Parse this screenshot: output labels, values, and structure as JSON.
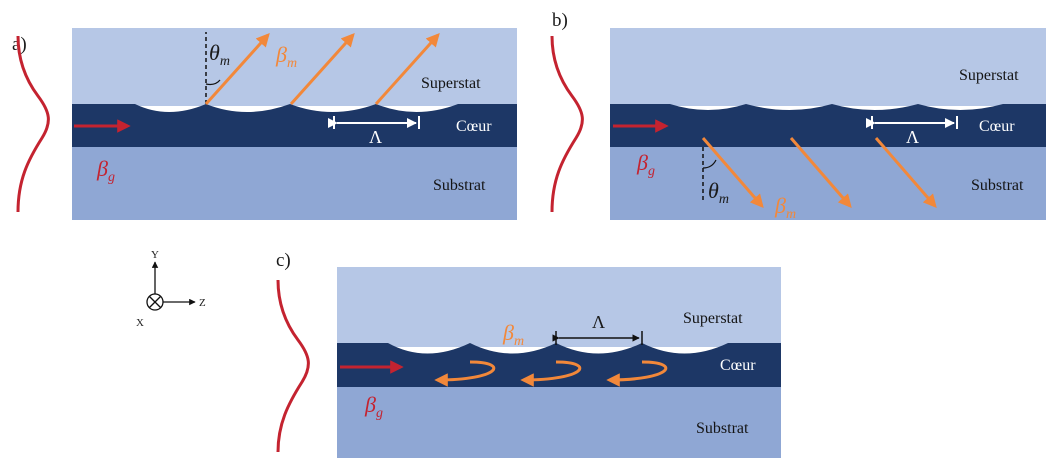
{
  "colors": {
    "superstrate": "#b6c7e6",
    "core": "#1d3766",
    "substrate": "#8fa7d4",
    "guided": "#c42330",
    "radiated": "#f2883a",
    "period_marker_light": "#ffffff",
    "period_marker_dark": "#111111"
  },
  "icons": {
    "field_profile": "gaussian-curve-icon",
    "axes": "xyz-axes-icon",
    "x_axis": "circle-cross-icon"
  },
  "panels": [
    {
      "id": "a",
      "label": "a)",
      "superstrate": "Superstat",
      "core": "Cœur",
      "substrate": "Substrat",
      "guided": {
        "symbol": "β",
        "subscript": "g"
      },
      "radiated": {
        "symbol": "β",
        "subscript": "m"
      },
      "angle": {
        "symbol": "θ",
        "subscript": "m"
      },
      "period": "Λ"
    },
    {
      "id": "b",
      "label": "b)",
      "superstrate": "Superstat",
      "core": "Cœur",
      "substrate": "Substrat",
      "guided": {
        "symbol": "β",
        "subscript": "g"
      },
      "radiated": {
        "symbol": "β",
        "subscript": "m"
      },
      "angle": {
        "symbol": "θ",
        "subscript": "m"
      },
      "period": "Λ"
    },
    {
      "id": "c",
      "label": "c)",
      "superstrate": "Superstat",
      "core": "Cœur",
      "substrate": "Substrat",
      "guided": {
        "symbol": "β",
        "subscript": "g"
      },
      "radiated": {
        "symbol": "β",
        "subscript": "m"
      },
      "period": "Λ"
    }
  ],
  "axes": {
    "y": "Y",
    "x": "X",
    "z": "Z"
  }
}
